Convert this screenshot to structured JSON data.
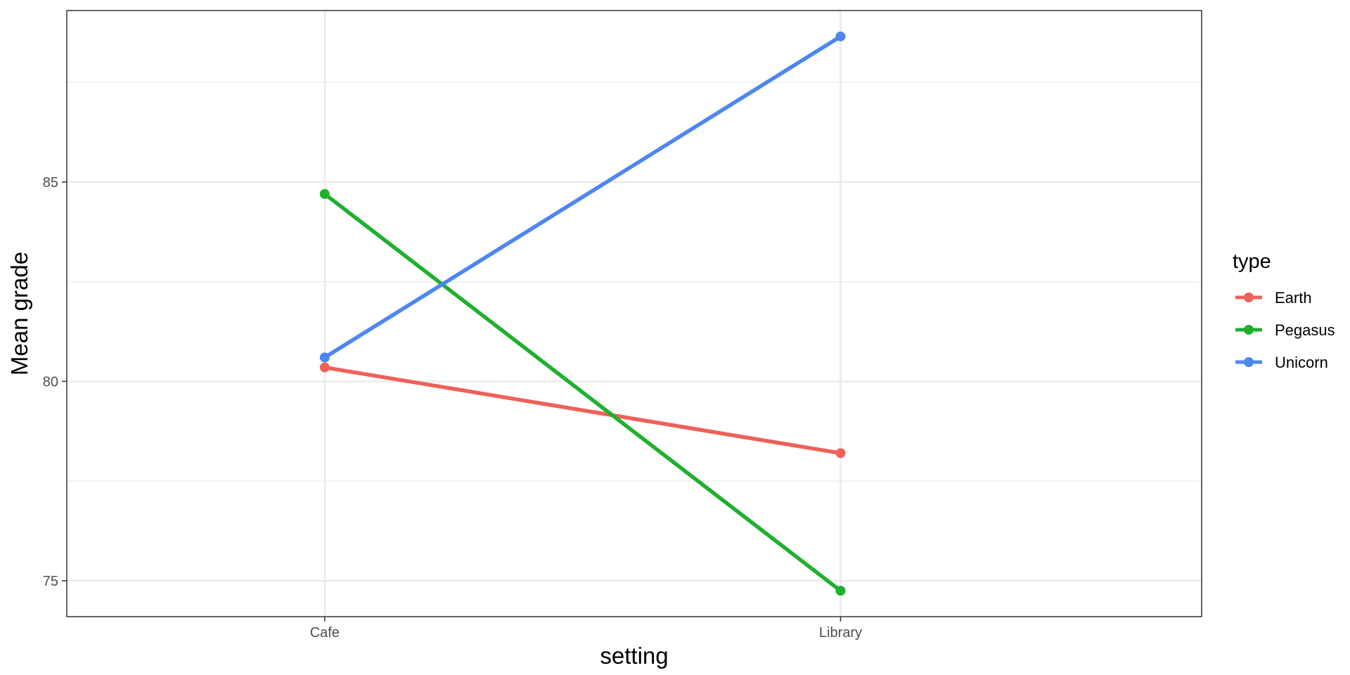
{
  "chart_data": {
    "type": "line",
    "categories": [
      "Cafe",
      "Library"
    ],
    "series": [
      {
        "name": "Earth",
        "values": [
          80.35,
          78.2
        ],
        "color": "#f0605a"
      },
      {
        "name": "Pegasus",
        "values": [
          84.7,
          74.75
        ],
        "color": "#1fb02e"
      },
      {
        "name": "Unicorn",
        "values": [
          80.6,
          88.65
        ],
        "color": "#4d86f2"
      }
    ],
    "xlabel": "setting",
    "ylabel": "Mean grade",
    "ylim": [
      74.1,
      89.3
    ],
    "yticks": [
      75,
      80,
      85
    ],
    "ytick_labels": [
      "75",
      "80",
      "85"
    ],
    "y_minor_gridlines": [
      77.5,
      82.5,
      87.5
    ],
    "legend": {
      "title": "type",
      "position": "right"
    },
    "grid": true,
    "theme_colors": {
      "panel_border": "#333333",
      "grid": "#ebebeb",
      "tick_text": "#4d4d4d"
    }
  }
}
